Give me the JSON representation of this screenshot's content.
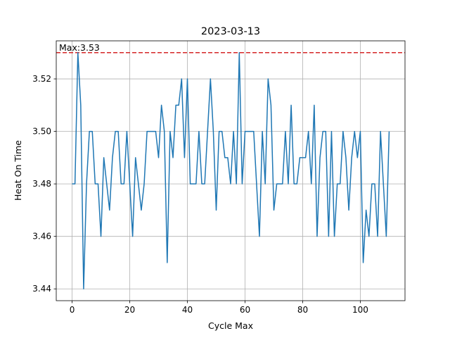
{
  "chart_data": {
    "type": "line",
    "title": "2023-03-13",
    "xlabel": "Cycle Max",
    "ylabel": "Heat On Time",
    "xlim": [
      -5.5,
      115.5
    ],
    "ylim": [
      3.4355,
      3.5345
    ],
    "xticks": [
      0,
      20,
      40,
      60,
      80,
      100
    ],
    "yticks": [
      3.44,
      3.46,
      3.48,
      3.5,
      3.52
    ],
    "ytick_labels": [
      "3.44",
      "3.46",
      "3.48",
      "3.50",
      "3.52"
    ],
    "grid": true,
    "series": [
      {
        "color": "#1f77b4",
        "x": [
          0,
          1,
          2,
          3,
          4,
          5,
          6,
          7,
          8,
          9,
          10,
          11,
          12,
          13,
          14,
          15,
          16,
          17,
          18,
          19,
          20,
          21,
          22,
          23,
          24,
          25,
          26,
          27,
          28,
          29,
          30,
          31,
          32,
          33,
          34,
          35,
          36,
          37,
          38,
          39,
          40,
          41,
          42,
          43,
          44,
          45,
          46,
          47,
          48,
          49,
          50,
          51,
          52,
          53,
          54,
          55,
          56,
          57,
          58,
          59,
          60,
          61,
          62,
          63,
          64,
          65,
          66,
          67,
          68,
          69,
          70,
          71,
          72,
          73,
          74,
          75,
          76,
          77,
          78,
          79,
          80,
          81,
          82,
          83,
          84,
          85,
          86,
          87,
          88,
          89,
          90,
          91,
          92,
          93,
          94,
          95,
          96,
          97,
          98,
          99,
          100,
          101,
          102,
          103,
          104,
          105,
          106,
          107,
          108,
          109,
          110
        ],
        "y": [
          3.48,
          3.48,
          3.53,
          3.51,
          3.44,
          3.48,
          3.5,
          3.5,
          3.48,
          3.48,
          3.46,
          3.49,
          3.48,
          3.47,
          3.49,
          3.5,
          3.5,
          3.48,
          3.48,
          3.5,
          3.48,
          3.46,
          3.49,
          3.48,
          3.47,
          3.48,
          3.5,
          3.5,
          3.5,
          3.5,
          3.49,
          3.51,
          3.5,
          3.45,
          3.5,
          3.49,
          3.51,
          3.51,
          3.52,
          3.49,
          3.52,
          3.48,
          3.48,
          3.48,
          3.5,
          3.48,
          3.48,
          3.5,
          3.52,
          3.5,
          3.47,
          3.5,
          3.5,
          3.49,
          3.49,
          3.48,
          3.5,
          3.48,
          3.53,
          3.48,
          3.5,
          3.5,
          3.5,
          3.5,
          3.48,
          3.46,
          3.5,
          3.48,
          3.52,
          3.51,
          3.47,
          3.48,
          3.48,
          3.48,
          3.5,
          3.48,
          3.51,
          3.48,
          3.48,
          3.49,
          3.49,
          3.49,
          3.5,
          3.48,
          3.51,
          3.46,
          3.49,
          3.5,
          3.5,
          3.46,
          3.5,
          3.46,
          3.48,
          3.48,
          3.5,
          3.49,
          3.47,
          3.49,
          3.5,
          3.49,
          3.5,
          3.45,
          3.47,
          3.46,
          3.48,
          3.48,
          3.46,
          3.5,
          3.48,
          3.46,
          3.5
        ]
      }
    ],
    "reference_line": {
      "y": 3.53,
      "color": "#d62728",
      "style": "dashed",
      "label": "Max:3.53"
    }
  }
}
